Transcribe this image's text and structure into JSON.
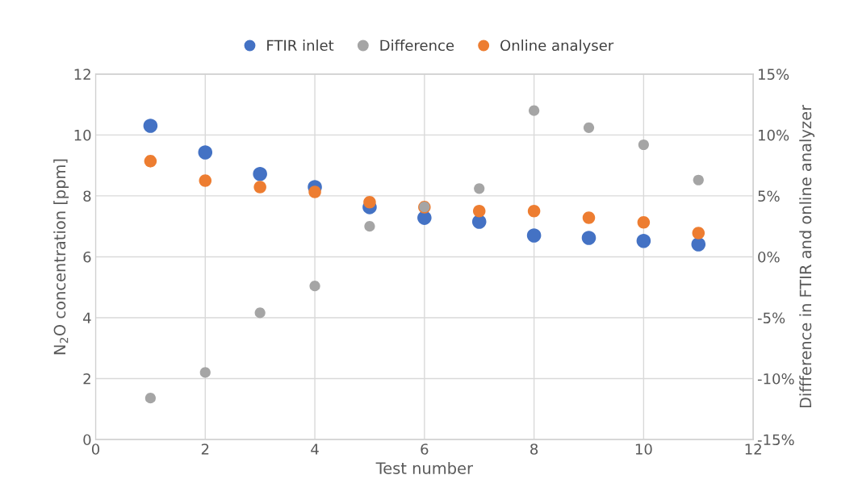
{
  "chart_data": {
    "type": "scatter",
    "xlabel": "Test number",
    "ylabel": "N$_{2}$O concentration [ppm]",
    "y2label": "Diffference in FTIR and online analyzer",
    "x": [
      1,
      2,
      3,
      4,
      5,
      6,
      7,
      8,
      9,
      10,
      11
    ],
    "series": [
      {
        "name": "FTIR inlet",
        "color": "#4472c4",
        "values": [
          10.3,
          9.43,
          8.72,
          8.29,
          7.63,
          7.28,
          7.15,
          6.7,
          6.62,
          6.52,
          6.41
        ]
      },
      {
        "name": "Difference",
        "color": "#a5a5a5",
        "axis": "y2",
        "values": [
          -11.6,
          -9.5,
          -4.6,
          -2.4,
          2.5,
          4.1,
          5.6,
          12.0,
          10.6,
          9.2,
          6.3
        ]
      },
      {
        "name": "Online analyser",
        "color": "#ed7d31",
        "values": [
          9.14,
          8.5,
          8.29,
          8.13,
          7.79,
          7.63,
          7.5,
          7.5,
          7.28,
          7.13,
          6.78
        ]
      }
    ],
    "xlim": [
      0,
      12
    ],
    "xticks": [
      0,
      2,
      4,
      6,
      8,
      10,
      12
    ],
    "ylim": [
      0,
      12
    ],
    "yticks": [
      0,
      2,
      4,
      6,
      8,
      10,
      12
    ],
    "y2lim": [
      -15,
      15
    ],
    "y2ticks": [
      {
        "value": -15,
        "label": "-15%"
      },
      {
        "value": -10,
        "label": "-10%"
      },
      {
        "value": -5,
        "label": "-5%"
      },
      {
        "value": 0,
        "label": "0%"
      },
      {
        "value": 5,
        "label": "5%"
      },
      {
        "value": 10,
        "label": "10%"
      },
      {
        "value": 15,
        "label": "15%"
      }
    ],
    "grid": true,
    "legend": "top",
    "marker": "circle"
  }
}
